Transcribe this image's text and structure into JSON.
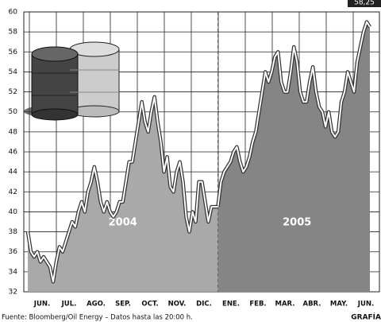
{
  "chart_data": {
    "type": "area",
    "ylim": [
      32,
      60
    ],
    "yticks": [
      32,
      34,
      36,
      38,
      40,
      42,
      44,
      46,
      48,
      50,
      52,
      54,
      56,
      58,
      60
    ],
    "grid": true,
    "month_labels": [
      "JUN.",
      "JUL.",
      "AGO.",
      "SEP.",
      "OCT.",
      "NOV.",
      "DIC.",
      "ENE.",
      "FEB.",
      "MAR.",
      "ABR.",
      "MAY.",
      "JUN."
    ],
    "series": [
      {
        "name": "2004",
        "color": "#a9a9a9",
        "values": [
          38,
          36,
          35.5,
          36,
          35,
          35.5,
          35,
          34.5,
          33,
          35,
          36.5,
          36,
          37,
          38,
          39,
          38.5,
          40,
          41,
          40,
          42,
          43,
          44.5,
          43,
          41,
          40,
          41,
          40,
          39.5,
          40,
          41,
          41,
          43,
          45,
          45,
          47,
          49,
          51,
          49,
          48,
          50,
          51.5,
          49,
          47,
          44,
          45.5,
          42.5,
          42,
          44,
          45,
          43,
          39.5,
          38,
          40,
          39,
          43,
          43,
          41,
          39,
          40.5,
          40.5,
          40.5
        ]
      },
      {
        "name": "2005",
        "color": "#858585",
        "values": [
          43,
          44,
          44.5,
          45,
          46,
          46.5,
          45,
          44,
          44.5,
          45.5,
          47,
          48,
          50,
          52,
          54,
          53,
          54,
          55.5,
          56,
          53,
          52,
          52,
          54,
          56.5,
          55,
          52,
          51,
          51,
          53,
          54.5,
          52,
          50.5,
          50,
          48.5,
          50,
          48,
          47.5,
          48,
          51,
          52,
          54,
          53,
          52,
          55,
          56.5,
          58,
          59,
          58.5
        ]
      }
    ],
    "callout": "58,25",
    "source": "Fuente: Bloomberg/Oil Energy – Datos hasta las 20:00 h.",
    "credit": "GRAFÍA"
  }
}
